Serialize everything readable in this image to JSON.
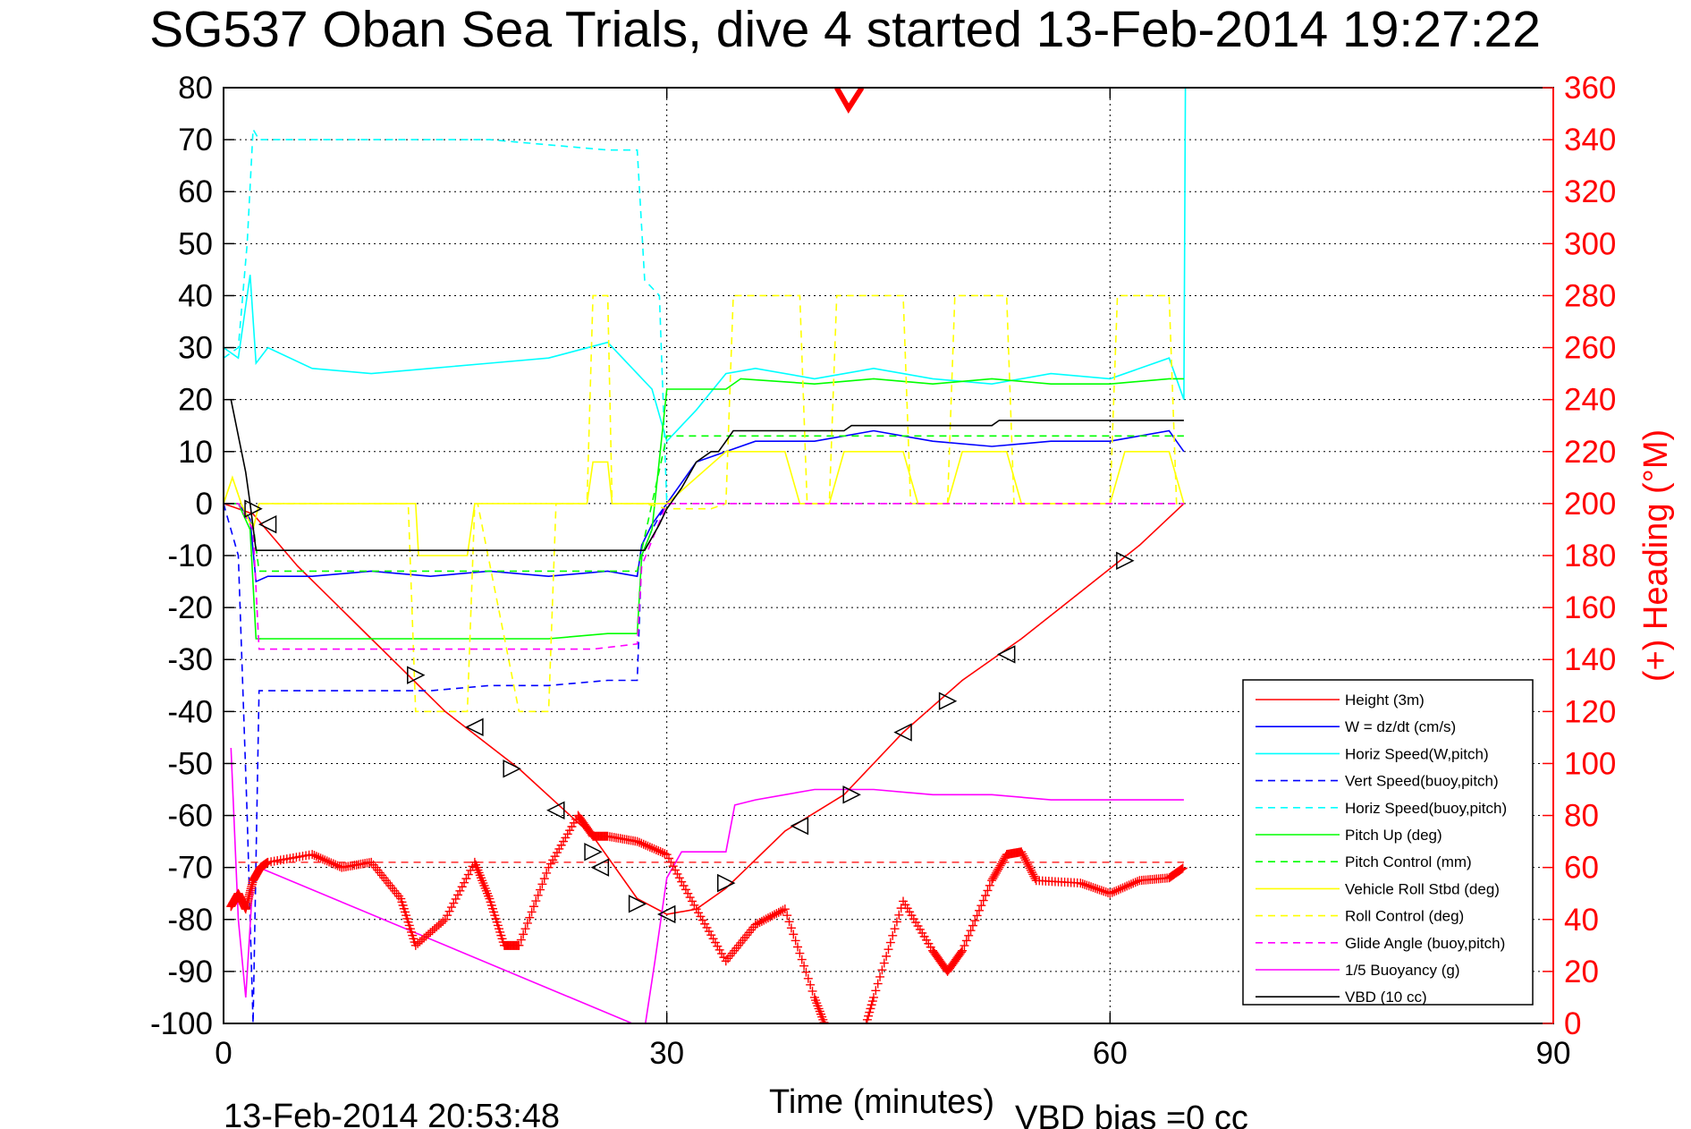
{
  "chart_data": {
    "type": "line",
    "title": "SG537 Oban Sea Trials, dive 4 started 13-Feb-2014 19:27:22",
    "xlabel": "Time (minutes)",
    "ylabel": "",
    "y2label": "(+) Heading (°M)",
    "xlim": [
      0,
      90
    ],
    "ylim": [
      -100,
      80
    ],
    "y2lim": [
      0,
      360
    ],
    "xticks": [
      "0",
      "30",
      "60",
      "90"
    ],
    "yticks": [
      "80",
      "70",
      "60",
      "50",
      "40",
      "30",
      "20",
      "10",
      "0",
      "-10",
      "-20",
      "-30",
      "-40",
      "-50",
      "-60",
      "-70",
      "-80",
      "-90",
      "-100"
    ],
    "y2ticks": [
      "360",
      "340",
      "320",
      "300",
      "280",
      "260",
      "240",
      "220",
      "200",
      "180",
      "160",
      "140",
      "120",
      "100",
      "80",
      "60",
      "40",
      "20",
      "0"
    ],
    "grid": true,
    "legend_position": "lower-right",
    "footer_left": "13-Feb-2014 20:53:48",
    "footer_right": "VBD bias =0 cc",
    "series": [
      {
        "name": "Height (3m)",
        "color": "#ff0000",
        "dash": "",
        "x": [
          0,
          2,
          5,
          10,
          15,
          20,
          25,
          28,
          30,
          32,
          34,
          38,
          42,
          46,
          50,
          54,
          58,
          62,
          65
        ],
        "y": [
          0,
          -2,
          -12,
          -26,
          -40,
          -51,
          -64,
          -76,
          -79,
          -78,
          -74,
          -63,
          -56,
          -44,
          -34,
          -26,
          -17,
          -8,
          0
        ]
      },
      {
        "name": "W = dz/dt (cm/s)",
        "color": "#0000ff",
        "dash": "",
        "x": [
          0,
          1,
          1.8,
          2.2,
          3,
          6,
          10,
          14,
          18,
          22,
          26,
          28,
          28.3,
          29,
          30,
          32,
          34,
          36,
          40,
          44,
          48,
          52,
          56,
          60,
          64,
          65
        ],
        "y": [
          0,
          0,
          -3,
          -15,
          -14,
          -14,
          -13,
          -14,
          -13,
          -14,
          -13,
          -14,
          -8,
          -4,
          0,
          8,
          10,
          12,
          12,
          14,
          12,
          11,
          12,
          12,
          14,
          10
        ]
      },
      {
        "name": "Horiz Speed(W,pitch)",
        "color": "#00ffff",
        "dash": "",
        "x": [
          0,
          1,
          1.8,
          2.2,
          3,
          6,
          10,
          14,
          18,
          22,
          26,
          28,
          29,
          30,
          32,
          34,
          36,
          40,
          44,
          48,
          52,
          56,
          60,
          64,
          65,
          65.1
        ],
        "y": [
          30,
          28,
          44,
          27,
          30,
          26,
          25,
          26,
          27,
          28,
          31,
          25,
          22,
          12,
          18,
          25,
          26,
          24,
          26,
          24,
          23,
          25,
          24,
          28,
          20,
          80
        ]
      },
      {
        "name": "Vert Speed(buoy,pitch)",
        "color": "#0000ff",
        "dash": "8,6",
        "x": [
          0,
          1,
          1.6,
          2,
          2.4,
          3,
          6,
          10,
          14,
          18,
          22,
          26,
          28,
          28.3,
          29,
          30
        ],
        "y": [
          0,
          -10,
          -60,
          -100,
          -36,
          -36,
          -36,
          -36,
          -36,
          -35,
          -35,
          -34,
          -34,
          -10,
          -5,
          0
        ]
      },
      {
        "name": "Horiz Speed(buoy,pitch)",
        "color": "#00ffff",
        "dash": "8,6",
        "x": [
          0,
          1,
          1.6,
          2,
          2.4,
          3,
          6,
          10,
          14,
          18,
          22,
          26,
          28,
          28.5,
          29.5,
          30
        ],
        "y": [
          28,
          30,
          50,
          72,
          70,
          70,
          70,
          70,
          70,
          70,
          69,
          68,
          68,
          43,
          40,
          0
        ]
      },
      {
        "name": "Pitch Up (deg)",
        "color": "#00ff00",
        "dash": "",
        "x": [
          0,
          1,
          1.8,
          2.2,
          3,
          6,
          10,
          14,
          18,
          22,
          26,
          28,
          28.3,
          29,
          30,
          34,
          35,
          40,
          44,
          48,
          52,
          56,
          60,
          64,
          65
        ],
        "y": [
          0,
          0,
          -5,
          -26,
          -26,
          -26,
          -26,
          -26,
          -26,
          -26,
          -25,
          -25,
          -10,
          -5,
          22,
          22,
          24,
          23,
          24,
          23,
          24,
          23,
          23,
          24,
          24
        ]
      },
      {
        "name": "Pitch Control (mm)",
        "color": "#00ff00",
        "dash": "8,6",
        "x": [
          0,
          1,
          2,
          2.4,
          5,
          10,
          15,
          20,
          25,
          28,
          28.3,
          30,
          65
        ],
        "y": [
          0,
          0,
          -4,
          -13,
          -13,
          -13,
          -13,
          -13,
          -13,
          -13,
          -9,
          13,
          13
        ]
      },
      {
        "name": "Vehicle Roll Stbd (deg)",
        "color": "#ffff00",
        "dash": "",
        "x": [
          0,
          0.6,
          1.2,
          2,
          2.4,
          3,
          12.5,
          13,
          13.2,
          16.5,
          17,
          17.2,
          20,
          22,
          22.5,
          24.6,
          25,
          26,
          26.3,
          28,
          28.5,
          29,
          30,
          34,
          35,
          38,
          39,
          41,
          42,
          46,
          47,
          49,
          50,
          53,
          54,
          60,
          61,
          64,
          65
        ],
        "y": [
          0,
          5,
          0,
          -5,
          0,
          0,
          0,
          0,
          -10,
          -10,
          0,
          0,
          0,
          0,
          0,
          0,
          8,
          8,
          0,
          0,
          0,
          0,
          0,
          10,
          10,
          10,
          0,
          0,
          10,
          10,
          0,
          0,
          10,
          10,
          0,
          0,
          10,
          10,
          0
        ]
      },
      {
        "name": "Roll Control (deg)",
        "color": "#ffff00",
        "dash": "8,6",
        "x": [
          0,
          0.6,
          1.2,
          2,
          2.4,
          3,
          12.5,
          13,
          16.5,
          17,
          17.2,
          20,
          22,
          22.5,
          24.6,
          25,
          26,
          26.3,
          28,
          28.5,
          30,
          33,
          34,
          34.5,
          39,
          39.5,
          41,
          41.5,
          46,
          46.5,
          49,
          49.5,
          53,
          53.5,
          60,
          60.5,
          64,
          64.5,
          65
        ],
        "y": [
          0,
          5,
          0,
          -5,
          0,
          0,
          0,
          -40,
          -40,
          0,
          0,
          -40,
          -40,
          0,
          0,
          40,
          40,
          0,
          0,
          0,
          -1,
          -1,
          0,
          40,
          40,
          0,
          0,
          40,
          40,
          0,
          0,
          40,
          40,
          0,
          0,
          40,
          40,
          0,
          0
        ]
      },
      {
        "name": "Glide Angle (buoy,pitch)",
        "color": "#ff00ff",
        "dash": "8,6",
        "x": [
          0,
          1,
          2,
          2.4,
          5,
          10,
          15,
          20,
          25,
          28,
          28.3,
          30,
          65
        ],
        "y": [
          0,
          0,
          -5,
          -28,
          -28,
          -28,
          -28,
          -28,
          -28,
          -27,
          -12,
          0,
          0
        ]
      },
      {
        "name": "1/5 Buoyancy (g)",
        "color": "#ff00ff",
        "dash": "",
        "x": [
          0.5,
          1,
          1.5,
          2,
          2.4,
          28.5,
          29.2,
          30,
          31,
          34,
          34.6,
          36,
          40,
          44,
          48,
          52,
          56,
          60,
          65
        ],
        "y": [
          -47,
          -80,
          -95,
          -72,
          -70,
          -101,
          -88,
          -72,
          -67,
          -67,
          -58,
          -57,
          -55,
          -55,
          -56,
          -56,
          -57,
          -57,
          -57
        ]
      },
      {
        "name": "VBD (10 cc)",
        "color": "#000000",
        "dash": "",
        "x": [
          0.5,
          1.5,
          1.8,
          2.2,
          28,
          28.5,
          29.5,
          30,
          31,
          32,
          33,
          33.5,
          34,
          34.5,
          42,
          42.5,
          46,
          52,
          52.5,
          65
        ],
        "y": [
          20,
          6,
          0,
          -9,
          -9,
          -9,
          -4,
          -1,
          3,
          8,
          10,
          10,
          12,
          14,
          14,
          15,
          15,
          15,
          16,
          16
        ]
      },
      {
        "name": "Heading",
        "color": "#ff0000",
        "dash": "",
        "axis": "right",
        "marker": "+",
        "x": [
          0.5,
          1,
          1.5,
          2,
          2.5,
          3,
          6,
          8,
          10,
          12,
          13,
          15,
          17,
          18,
          19,
          20,
          22,
          24,
          25,
          26,
          28,
          30,
          32,
          34,
          36,
          38,
          40,
          41,
          42.3,
          43,
          44,
          46,
          48,
          49,
          50,
          52,
          53,
          54,
          55,
          58,
          60,
          62,
          64,
          65
        ],
        "y": [
          45,
          50,
          44,
          55,
          60,
          62,
          65,
          60,
          62,
          48,
          30,
          40,
          62,
          48,
          30,
          30,
          60,
          80,
          72,
          72,
          70,
          65,
          44,
          24,
          38,
          44,
          10,
          -5,
          -10,
          -10,
          10,
          47,
          28,
          20,
          28,
          55,
          65,
          66,
          55,
          54,
          50,
          55,
          56,
          60
        ]
      }
    ],
    "markers": {
      "name": "Height track triangles",
      "x": [
        2,
        3,
        13,
        17,
        19.5,
        22.5,
        25,
        25.5,
        28,
        30,
        34,
        39,
        42.5,
        46,
        49,
        53,
        61
      ],
      "y": [
        -1,
        -4,
        -33,
        -43,
        -51,
        -59,
        -67,
        -70,
        -77,
        -79,
        -73,
        -62,
        -56,
        -44,
        -38,
        -29,
        -11
      ]
    }
  }
}
